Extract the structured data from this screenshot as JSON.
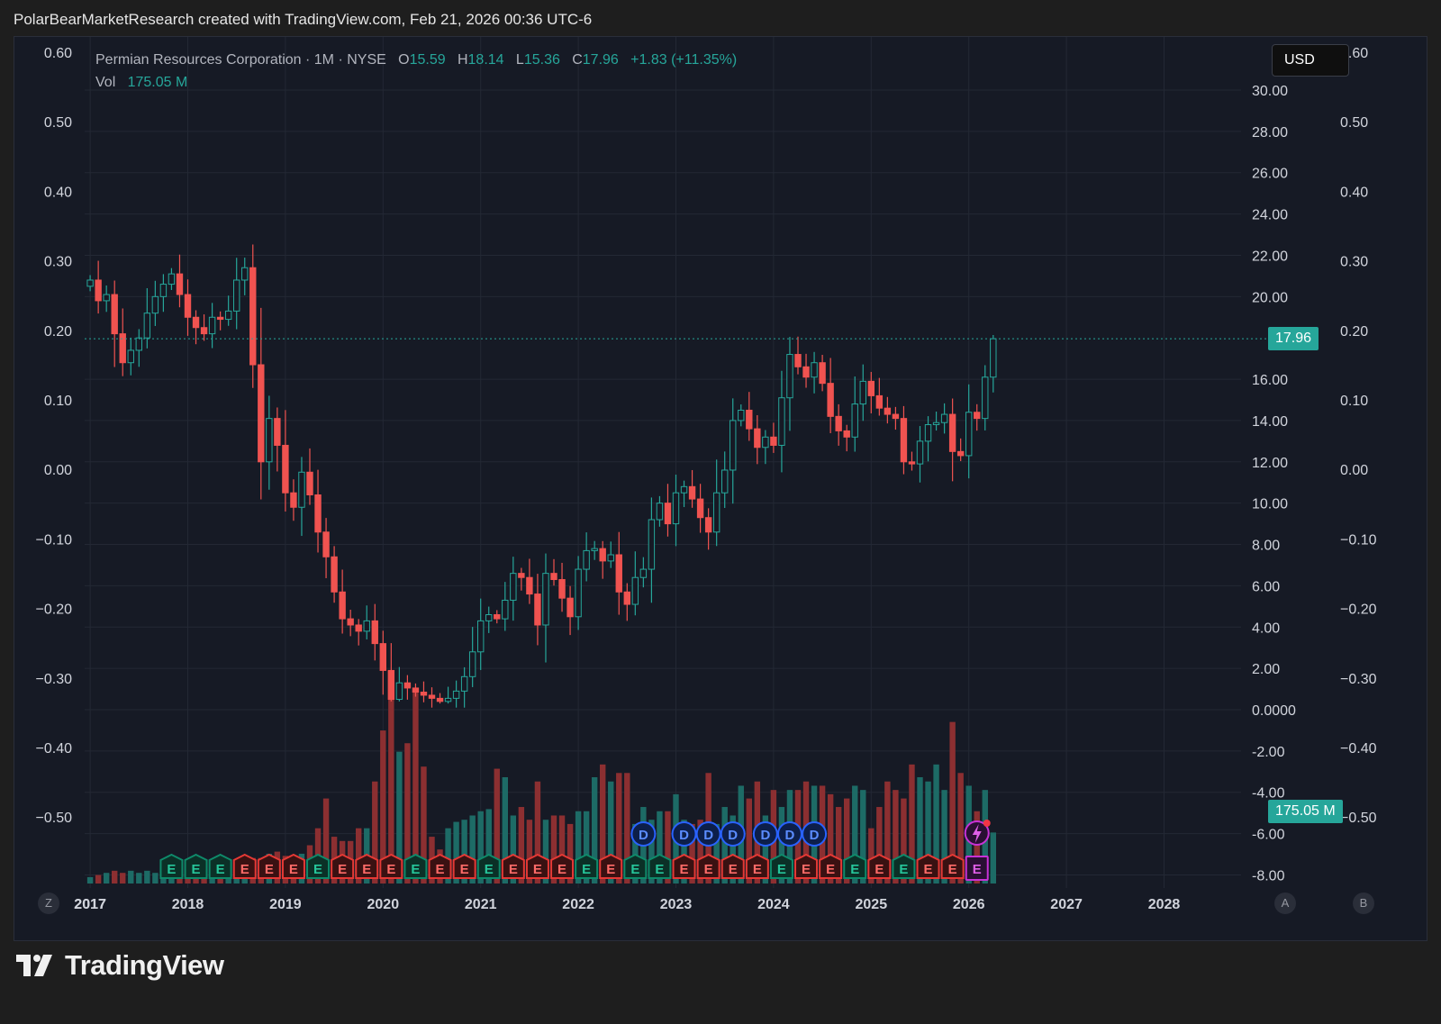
{
  "caption": "PolarBearMarketResearch created with TradingView.com, Feb 21, 2026 00:36 UTC-6",
  "legend": {
    "symbol": "Permian Resources Corporation · 1M · NYSE",
    "o_label": "O",
    "o_value": "15.59",
    "h_label": "H",
    "h_value": "18.14",
    "l_label": "L",
    "l_value": "15.36",
    "c_label": "C",
    "c_value": "17.96",
    "change": "+1.83 (+11.35%)",
    "vol_label": "Vol",
    "vol_value": "175.05 M"
  },
  "currency": "USD",
  "price_tag": "17.96",
  "volume_tag": "175.05 M",
  "buttons": {
    "z": "Z",
    "a": "A",
    "b": "B"
  },
  "brand": "TradingView",
  "colors": {
    "up": "#26a69a",
    "down": "#f05350",
    "up_vol": "#1d6b66",
    "down_vol": "#8c2f31",
    "background": "#161a25",
    "grid": "#232834",
    "dividend": "#2962ff",
    "earnings_up": "#0f8a6a",
    "earnings_down": "#e53935",
    "earnings_next": "#c832d6"
  },
  "chart_data": {
    "type": "candlestick",
    "interval": "1M",
    "title": "Permian Resources Corporation · 1M · NYSE",
    "x_ticks": [
      "2017",
      "2018",
      "2019",
      "2020",
      "2021",
      "2022",
      "2023",
      "2024",
      "2025",
      "2026",
      "2027",
      "2028"
    ],
    "price_axis_ticks": [
      "30.00",
      "28.00",
      "26.00",
      "24.00",
      "22.00",
      "20.00",
      "17.96",
      "16.00",
      "14.00",
      "12.00",
      "10.00",
      "8.00",
      "6.00",
      "4.00",
      "2.00",
      "0.0000",
      "-2.00",
      "-4.00",
      "-6.00",
      "-8.00"
    ],
    "left_axis_ticks": [
      "0.60",
      "0.50",
      "0.40",
      "0.30",
      "0.20",
      "0.10",
      "0.00",
      "−0.10",
      "−0.20",
      "−0.30",
      "−0.40",
      "−0.50"
    ],
    "right_axis_ticks": [
      "0.60",
      "0.50",
      "0.40",
      "0.30",
      "0.20",
      "0.10",
      "0.00",
      "−0.10",
      "−0.20",
      "−0.30",
      "−0.40",
      "−0.50"
    ],
    "price_range": [
      -8,
      31
    ],
    "last_close": 17.96,
    "start": "2017-01",
    "closes": [
      20.8,
      19.8,
      20.1,
      18.2,
      16.8,
      17.4,
      18.0,
      19.2,
      20.0,
      20.6,
      21.1,
      20.1,
      19.0,
      18.5,
      18.2,
      19.0,
      18.9,
      19.3,
      20.8,
      21.4,
      16.7,
      12.0,
      14.1,
      12.8,
      10.5,
      9.8,
      11.5,
      10.4,
      8.6,
      7.4,
      5.7,
      4.4,
      4.1,
      3.8,
      4.3,
      3.2,
      1.9,
      0.5,
      1.3,
      1.05,
      0.85,
      0.7,
      0.55,
      0.4,
      0.55,
      0.9,
      1.6,
      2.8,
      4.3,
      4.6,
      4.4,
      5.3,
      6.6,
      6.4,
      5.6,
      4.1,
      6.6,
      6.3,
      5.4,
      4.5,
      6.8,
      7.7,
      7.8,
      7.2,
      7.5,
      5.7,
      5.1,
      6.4,
      6.8,
      9.2,
      10.0,
      9.0,
      10.5,
      10.8,
      10.2,
      9.3,
      8.6,
      10.5,
      11.6,
      14.0,
      14.5,
      13.6,
      12.7,
      13.2,
      12.8,
      15.1,
      17.2,
      16.6,
      16.1,
      16.8,
      15.8,
      14.2,
      13.5,
      13.2,
      14.8,
      15.9,
      15.2,
      14.6,
      14.3,
      14.1,
      12.0,
      11.9,
      13.0,
      13.8,
      13.9,
      14.3,
      12.5,
      12.3,
      14.4,
      14.1,
      16.1,
      17.96
    ],
    "volume_relative": [
      0.03,
      0.04,
      0.05,
      0.06,
      0.05,
      0.06,
      0.05,
      0.06,
      0.05,
      0.06,
      0.05,
      0.06,
      0.07,
      0.07,
      0.08,
      0.08,
      0.09,
      0.1,
      0.09,
      0.09,
      0.12,
      0.12,
      0.14,
      0.15,
      0.13,
      0.13,
      0.14,
      0.18,
      0.26,
      0.4,
      0.22,
      0.2,
      0.2,
      0.26,
      0.26,
      0.48,
      0.72,
      1.0,
      0.62,
      0.66,
      0.92,
      0.55,
      0.22,
      0.16,
      0.26,
      0.29,
      0.3,
      0.32,
      0.34,
      0.35,
      0.54,
      0.5,
      0.32,
      0.36,
      0.3,
      0.48,
      0.3,
      0.32,
      0.32,
      0.28,
      0.34,
      0.34,
      0.5,
      0.56,
      0.48,
      0.52,
      0.52,
      0.28,
      0.36,
      0.3,
      0.34,
      0.34,
      0.42,
      0.3,
      0.28,
      0.3,
      0.52,
      0.28,
      0.36,
      0.32,
      0.46,
      0.4,
      0.48,
      0.32,
      0.44,
      0.36,
      0.44,
      0.44,
      0.48,
      0.46,
      0.46,
      0.42,
      0.36,
      0.4,
      0.46,
      0.44,
      0.26,
      0.36,
      0.48,
      0.44,
      0.4,
      0.56,
      0.5,
      0.48,
      0.56,
      0.44,
      0.76,
      0.52,
      0.46,
      0.34,
      0.44,
      0.24
    ],
    "dividend_marker_label": "D",
    "dividend_months": [
      "2022-09",
      "2023-02",
      "2023-05",
      "2023-08",
      "2023-12",
      "2024-03",
      "2024-06"
    ],
    "earnings_marker_label": "E",
    "earnings_markers": [
      {
        "month": "2017-11",
        "dir": "up"
      },
      {
        "month": "2018-02",
        "dir": "up"
      },
      {
        "month": "2018-05",
        "dir": "up"
      },
      {
        "month": "2018-08",
        "dir": "down"
      },
      {
        "month": "2018-11",
        "dir": "down"
      },
      {
        "month": "2019-02",
        "dir": "down"
      },
      {
        "month": "2019-05",
        "dir": "up"
      },
      {
        "month": "2019-08",
        "dir": "down"
      },
      {
        "month": "2019-11",
        "dir": "down"
      },
      {
        "month": "2020-02",
        "dir": "down"
      },
      {
        "month": "2020-05",
        "dir": "up"
      },
      {
        "month": "2020-08",
        "dir": "down"
      },
      {
        "month": "2020-11",
        "dir": "down"
      },
      {
        "month": "2021-02",
        "dir": "up"
      },
      {
        "month": "2021-05",
        "dir": "down"
      },
      {
        "month": "2021-08",
        "dir": "down"
      },
      {
        "month": "2021-11",
        "dir": "down"
      },
      {
        "month": "2022-02",
        "dir": "up"
      },
      {
        "month": "2022-05",
        "dir": "down"
      },
      {
        "month": "2022-08",
        "dir": "up"
      },
      {
        "month": "2022-11",
        "dir": "up"
      },
      {
        "month": "2023-02",
        "dir": "down"
      },
      {
        "month": "2023-05",
        "dir": "down"
      },
      {
        "month": "2023-08",
        "dir": "down"
      },
      {
        "month": "2023-11",
        "dir": "down"
      },
      {
        "month": "2024-02",
        "dir": "up"
      },
      {
        "month": "2024-05",
        "dir": "down"
      },
      {
        "month": "2024-08",
        "dir": "down"
      },
      {
        "month": "2024-11",
        "dir": "up"
      },
      {
        "month": "2025-02",
        "dir": "down"
      },
      {
        "month": "2025-05",
        "dir": "up"
      },
      {
        "month": "2025-08",
        "dir": "down"
      },
      {
        "month": "2025-11",
        "dir": "down"
      },
      {
        "month": "2026-02",
        "dir": "next"
      }
    ],
    "grid": true
  }
}
